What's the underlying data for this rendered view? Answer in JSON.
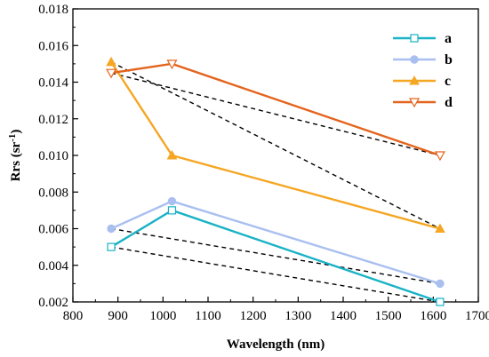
{
  "chart_data": {
    "type": "line",
    "xlabel": "Wavelength (nm)",
    "ylabel": "Rrs (sr",
    "ylabel_sup": "-1",
    "ylabel_close": ")",
    "xlim": [
      800,
      1700
    ],
    "ylim": [
      0.002,
      0.018
    ],
    "xticks": [
      "800",
      "900",
      "1000",
      "1100",
      "1200",
      "1300",
      "1400",
      "1500",
      "1600",
      "1700"
    ],
    "yticks": [
      "0.002",
      "0.004",
      "0.006",
      "0.008",
      "0.010",
      "0.012",
      "0.014",
      "0.016",
      "0.018"
    ],
    "legend_position": "top-right",
    "series": [
      {
        "name": "a",
        "color": "#19b2c6",
        "marker": "open-square",
        "x": [
          885,
          1020,
          1615
        ],
        "y": [
          0.005,
          0.007,
          0.002
        ]
      },
      {
        "name": "b",
        "color": "#a9bff0",
        "marker": "filled-circle",
        "x": [
          885,
          1020,
          1615
        ],
        "y": [
          0.006,
          0.0075,
          0.003
        ]
      },
      {
        "name": "c",
        "color": "#f5a623",
        "marker": "filled-triangle",
        "x": [
          885,
          1020,
          1615
        ],
        "y": [
          0.0151,
          0.01,
          0.006
        ]
      },
      {
        "name": "d",
        "color": "#e3641e",
        "marker": "open-triangle-down",
        "x": [
          885,
          1020,
          1615
        ],
        "y": [
          0.0145,
          0.015,
          0.01
        ]
      }
    ],
    "dashed_lines": [
      {
        "x": [
          885,
          1615
        ],
        "y": [
          0.005,
          0.002
        ]
      },
      {
        "x": [
          885,
          1615
        ],
        "y": [
          0.006,
          0.003
        ]
      },
      {
        "x": [
          885,
          1615
        ],
        "y": [
          0.0151,
          0.006
        ]
      },
      {
        "x": [
          885,
          1615
        ],
        "y": [
          0.0145,
          0.01
        ]
      }
    ]
  }
}
